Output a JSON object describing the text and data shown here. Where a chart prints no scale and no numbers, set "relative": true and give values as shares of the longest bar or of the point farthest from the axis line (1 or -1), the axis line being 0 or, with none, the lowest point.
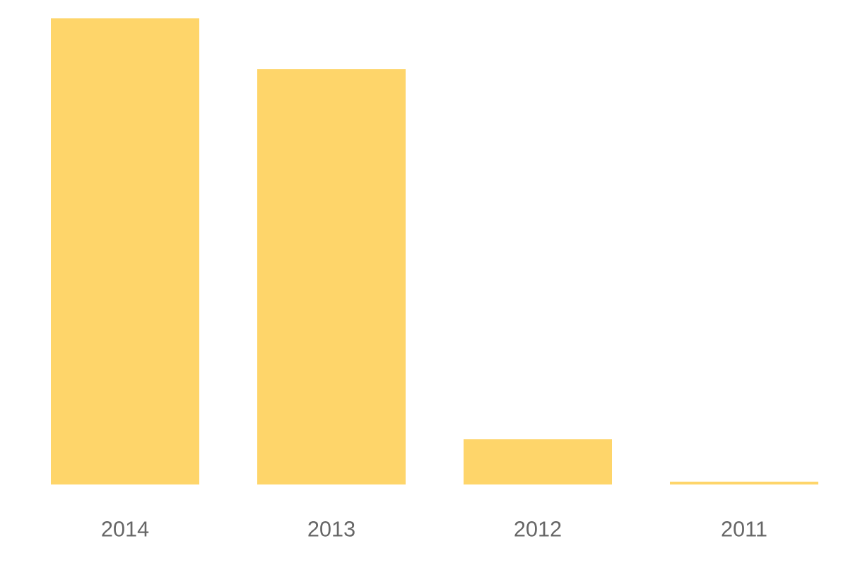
{
  "chart_data": {
    "type": "bar",
    "relative": true,
    "categories": [
      "2014",
      "2013",
      "2012",
      "2011"
    ],
    "values": [
      1,
      0.891,
      0.097,
      0.006
    ],
    "color": "#fed56a"
  }
}
